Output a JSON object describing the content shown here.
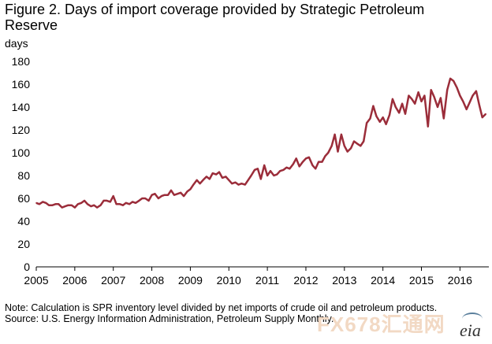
{
  "title": "Figure 2. Days of import coverage provided by Strategic Petroleum Reserve",
  "unit_label": "days",
  "notes": {
    "note": "Note: Calculation is SPR inventory level divided by net imports of crude oil and petroleum products.",
    "source": "Source: U.S. Energy Information Administration, Petroleum Supply Monthly."
  },
  "watermark_text": "FX678汇通网",
  "logo_text": "eia",
  "colors": {
    "line": "#9b2d3a",
    "axis": "#000000"
  },
  "chart_data": {
    "type": "line",
    "title": "Figure 2. Days of import coverage provided by Strategic Petroleum Reserve",
    "xlabel": "",
    "ylabel": "days",
    "ylim": [
      0,
      180
    ],
    "yticks": [
      0,
      20,
      40,
      60,
      80,
      100,
      120,
      140,
      160,
      180
    ],
    "xlim": [
      2005,
      2016.75
    ],
    "xticks": [
      2005,
      2006,
      2007,
      2008,
      2009,
      2010,
      2011,
      2012,
      2013,
      2014,
      2015,
      2016
    ],
    "grid": false,
    "legend": "none",
    "series": [
      {
        "name": "",
        "x": [
          2005.0,
          2005.08,
          2005.17,
          2005.25,
          2005.33,
          2005.42,
          2005.5,
          2005.58,
          2005.67,
          2005.75,
          2005.83,
          2005.92,
          2006.0,
          2006.08,
          2006.17,
          2006.25,
          2006.33,
          2006.42,
          2006.5,
          2006.58,
          2006.67,
          2006.75,
          2006.83,
          2006.92,
          2007.0,
          2007.08,
          2007.17,
          2007.25,
          2007.33,
          2007.42,
          2007.5,
          2007.58,
          2007.67,
          2007.75,
          2007.83,
          2007.92,
          2008.0,
          2008.08,
          2008.17,
          2008.25,
          2008.33,
          2008.42,
          2008.5,
          2008.58,
          2008.67,
          2008.75,
          2008.83,
          2008.92,
          2009.0,
          2009.08,
          2009.17,
          2009.25,
          2009.33,
          2009.42,
          2009.5,
          2009.58,
          2009.67,
          2009.75,
          2009.83,
          2009.92,
          2010.0,
          2010.08,
          2010.17,
          2010.25,
          2010.33,
          2010.42,
          2010.5,
          2010.58,
          2010.67,
          2010.75,
          2010.83,
          2010.92,
          2011.0,
          2011.08,
          2011.17,
          2011.25,
          2011.33,
          2011.42,
          2011.5,
          2011.58,
          2011.67,
          2011.75,
          2011.83,
          2011.92,
          2012.0,
          2012.08,
          2012.17,
          2012.25,
          2012.33,
          2012.42,
          2012.5,
          2012.58,
          2012.67,
          2012.75,
          2012.83,
          2012.92,
          2013.0,
          2013.08,
          2013.17,
          2013.25,
          2013.33,
          2013.42,
          2013.5,
          2013.58,
          2013.67,
          2013.75,
          2013.83,
          2013.92,
          2014.0,
          2014.08,
          2014.17,
          2014.25,
          2014.33,
          2014.42,
          2014.5,
          2014.58,
          2014.67,
          2014.75,
          2014.83,
          2014.92,
          2015.0,
          2015.08,
          2015.17,
          2015.25,
          2015.33,
          2015.42,
          2015.5,
          2015.58,
          2015.67,
          2015.75,
          2015.83,
          2015.92,
          2016.0,
          2016.08,
          2016.17,
          2016.25,
          2016.33,
          2016.42,
          2016.5,
          2016.58,
          2016.67
        ],
        "values": [
          56,
          55,
          57,
          56,
          54,
          54,
          55,
          55,
          52,
          53,
          54,
          54,
          52,
          55,
          56,
          58,
          55,
          53,
          54,
          52,
          54,
          58,
          58,
          57,
          62,
          55,
          55,
          54,
          56,
          55,
          57,
          56,
          58,
          60,
          60,
          58,
          63,
          64,
          60,
          62,
          63,
          63,
          67,
          63,
          64,
          65,
          62,
          66,
          68,
          72,
          76,
          73,
          76,
          79,
          77,
          82,
          81,
          83,
          78,
          79,
          76,
          73,
          74,
          72,
          73,
          72,
          76,
          80,
          85,
          86,
          77,
          89,
          80,
          84,
          80,
          81,
          84,
          85,
          87,
          86,
          90,
          95,
          88,
          92,
          95,
          96,
          89,
          86,
          92,
          92,
          97,
          100,
          106,
          116,
          101,
          116,
          106,
          101,
          104,
          110,
          108,
          106,
          110,
          126,
          130,
          141,
          132,
          127,
          131,
          125,
          133,
          147,
          140,
          135,
          143,
          134,
          150,
          147,
          143,
          153,
          145,
          150,
          123,
          155,
          149,
          140,
          148,
          130,
          155,
          165,
          163,
          157,
          150,
          145,
          138,
          144,
          150,
          154,
          142,
          131,
          134
        ]
      }
    ]
  }
}
